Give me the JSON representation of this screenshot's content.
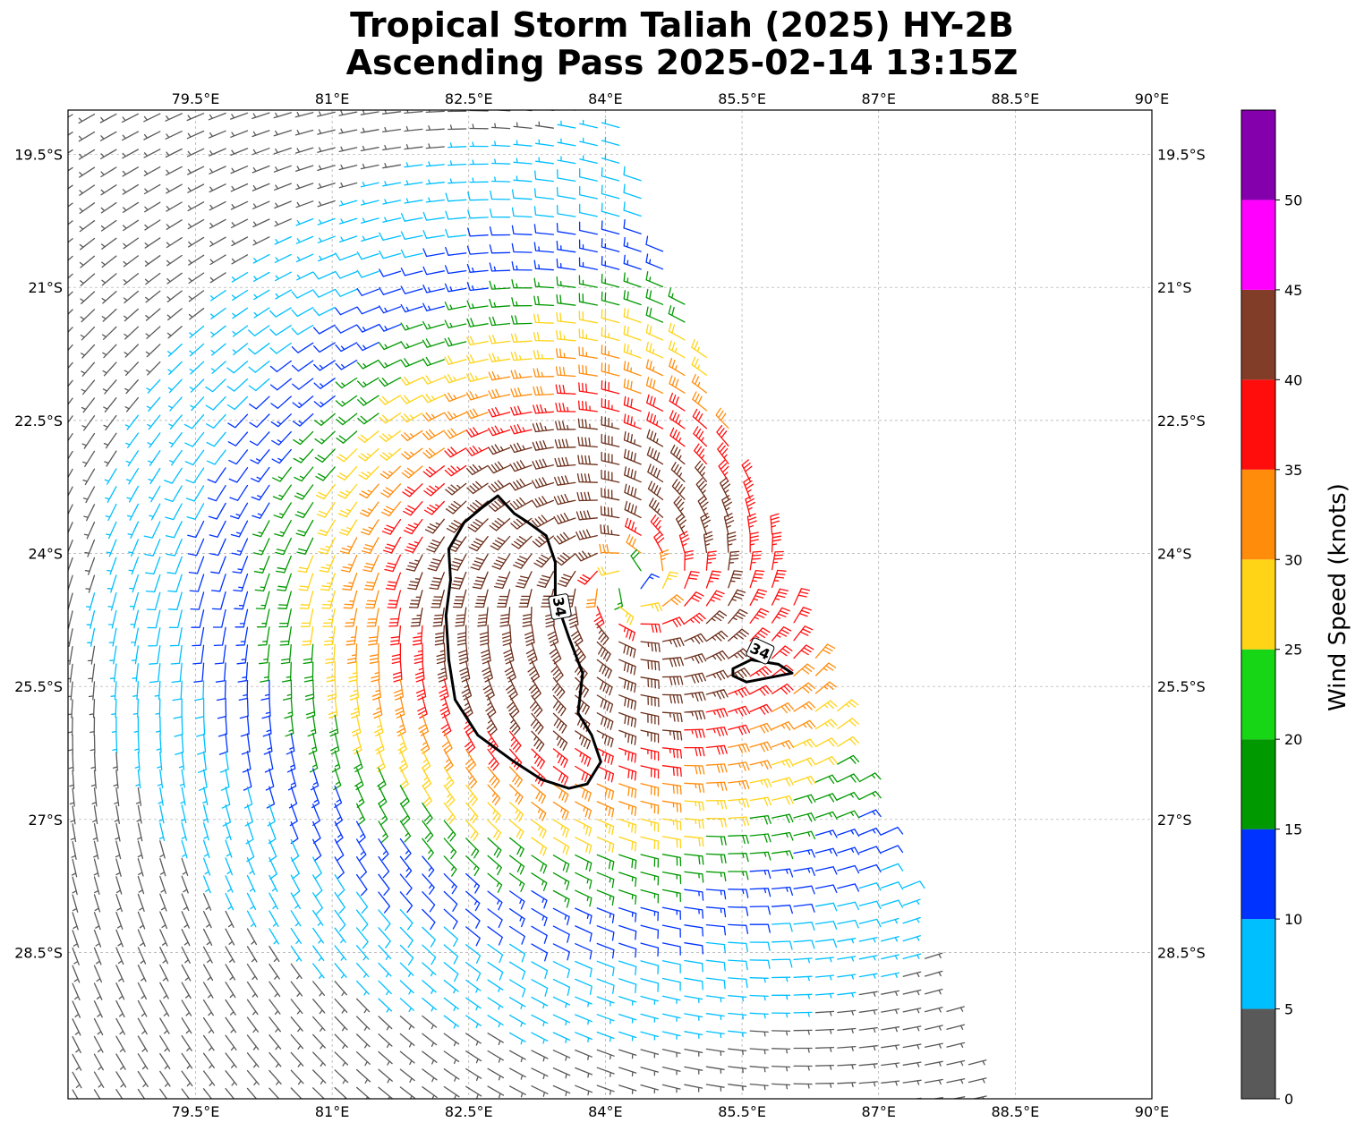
{
  "title": {
    "line1": "Tropical Storm Taliah (2025) HY-2B",
    "line2": "Ascending Pass 2025-02-14 13:15Z"
  },
  "map": {
    "lon_range": [
      78.1,
      90.0
    ],
    "lat_range": [
      -30.15,
      -19.0
    ],
    "lon_ticks": [
      {
        "value": 79.5,
        "label": "79.5°E"
      },
      {
        "value": 81.0,
        "label": "81°E"
      },
      {
        "value": 82.5,
        "label": "82.5°E"
      },
      {
        "value": 84.0,
        "label": "84°E"
      },
      {
        "value": 85.5,
        "label": "85.5°E"
      },
      {
        "value": 87.0,
        "label": "87°E"
      },
      {
        "value": 88.5,
        "label": "88.5°E"
      },
      {
        "value": 90.0,
        "label": "90°E"
      }
    ],
    "lat_ticks": [
      {
        "value": -19.5,
        "label": "19.5°S"
      },
      {
        "value": -21.0,
        "label": "21°S"
      },
      {
        "value": -22.5,
        "label": "22.5°S"
      },
      {
        "value": -24.0,
        "label": "24°S"
      },
      {
        "value": -25.5,
        "label": "25.5°S"
      },
      {
        "value": -27.0,
        "label": "27°S"
      },
      {
        "value": -28.5,
        "label": "28.5°S"
      }
    ],
    "gridlines": true,
    "storm_center": {
      "lon": 84.25,
      "lat": -24.35
    },
    "contour_34kt": {
      "label": "34",
      "west_region": [
        [
          82.82,
          -23.35
        ],
        [
          83.0,
          -23.55
        ],
        [
          83.15,
          -23.65
        ],
        [
          83.35,
          -23.8
        ],
        [
          83.45,
          -24.1
        ],
        [
          83.45,
          -24.5
        ],
        [
          83.6,
          -24.95
        ],
        [
          83.75,
          -25.35
        ],
        [
          83.7,
          -25.8
        ],
        [
          83.85,
          -26.05
        ],
        [
          83.95,
          -26.35
        ],
        [
          83.8,
          -26.6
        ],
        [
          83.6,
          -26.65
        ],
        [
          83.3,
          -26.55
        ],
        [
          83.0,
          -26.35
        ],
        [
          82.6,
          -26.05
        ],
        [
          82.35,
          -25.65
        ],
        [
          82.28,
          -25.2
        ],
        [
          82.25,
          -24.7
        ],
        [
          82.3,
          -24.3
        ],
        [
          82.28,
          -23.95
        ],
        [
          82.45,
          -23.65
        ],
        [
          82.65,
          -23.48
        ],
        [
          82.82,
          -23.35
        ]
      ],
      "east_region": [
        [
          85.4,
          -25.3
        ],
        [
          85.6,
          -25.2
        ],
        [
          85.9,
          -25.25
        ],
        [
          86.05,
          -25.35
        ],
        [
          85.8,
          -25.4
        ],
        [
          85.55,
          -25.45
        ],
        [
          85.4,
          -25.38
        ],
        [
          85.4,
          -25.3
        ]
      ]
    }
  },
  "colorbar": {
    "label": "Wind Speed (knots)",
    "bounds": [
      0,
      5,
      10,
      15,
      20,
      25,
      30,
      35,
      40,
      45,
      50,
      55
    ],
    "tick_labels": [
      "0",
      "5",
      "10",
      "15",
      "20",
      "25",
      "30",
      "35",
      "40",
      "45",
      "50"
    ],
    "colors": [
      "#595959",
      "#00bfff",
      "#0033ff",
      "#009900",
      "#16d616",
      "#ffd316",
      "#ff8c0b",
      "#ff0d0d",
      "#823d28",
      "#ff00ff",
      "#8300ac",
      "#2e0054"
    ]
  },
  "barb_colors": [
    "#595959",
    "#00bfff",
    "#0033ff",
    "#009900",
    "#ffd316",
    "#ff8c0b",
    "#ff0d0d",
    "#6b2e1a",
    "#ff00ff",
    "#8300ac",
    "#2e0054"
  ]
}
